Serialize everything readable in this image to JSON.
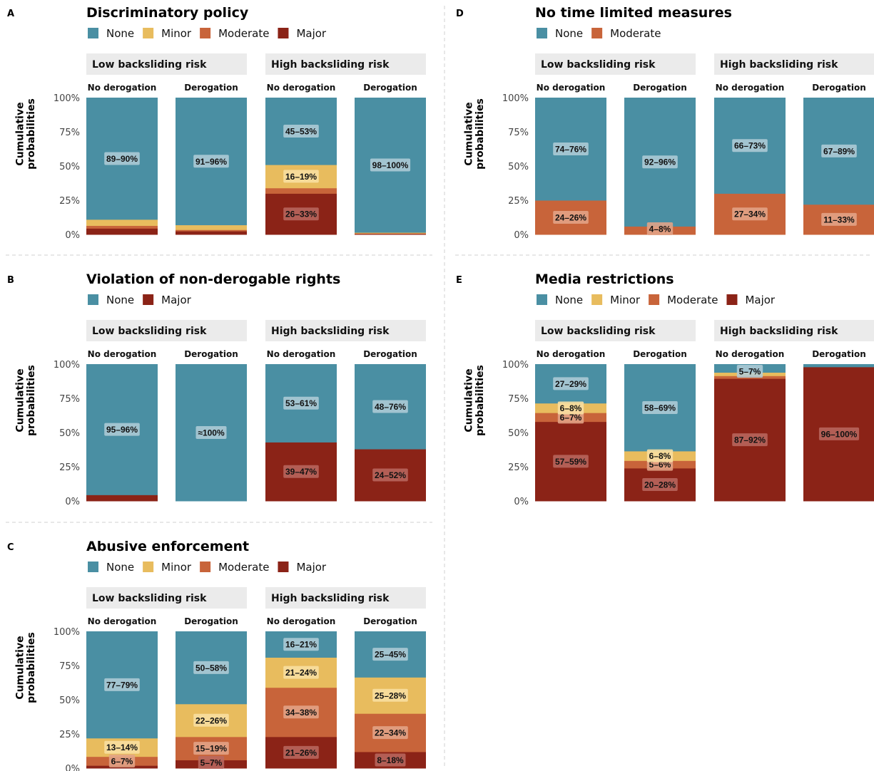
{
  "chart_data": [
    {
      "panel": "A",
      "title": "Discriminatory policy",
      "type": "stacked-bar",
      "categories_legend": [
        "None",
        "Minor",
        "Moderate",
        "Major"
      ],
      "colors": {
        "None": "#4a8fa3",
        "Minor": "#e8bc5e",
        "Moderate": "#c8643a",
        "Major": "#8b2317"
      },
      "ylabel": "Cumulative probabilities",
      "yticks": [
        "0%",
        "25%",
        "50%",
        "75%",
        "100%"
      ],
      "strips": [
        "Low backsliding risk",
        "High backsliding risk"
      ],
      "bars": [
        {
          "group": "Low backsliding risk",
          "label": "No derogation",
          "segments": [
            {
              "cat": "Major",
              "value": 0.045
            },
            {
              "cat": "Moderate",
              "value": 0.02
            },
            {
              "cat": "Minor",
              "value": 0.045
            },
            {
              "cat": "None",
              "value": 0.89
            }
          ],
          "annotations": [
            {
              "cat": "None",
              "text": "89–90%"
            }
          ]
        },
        {
          "group": "Low backsliding risk",
          "label": "Derogation",
          "segments": [
            {
              "cat": "Major",
              "value": 0.025
            },
            {
              "cat": "Moderate",
              "value": 0.01
            },
            {
              "cat": "Minor",
              "value": 0.035
            },
            {
              "cat": "None",
              "value": 0.93
            }
          ],
          "annotations": [
            {
              "cat": "None",
              "text": "91–96%"
            }
          ]
        },
        {
          "group": "High backsliding risk",
          "label": "No derogation",
          "segments": [
            {
              "cat": "Major",
              "value": 0.3
            },
            {
              "cat": "Moderate",
              "value": 0.04
            },
            {
              "cat": "Minor",
              "value": 0.17
            },
            {
              "cat": "None",
              "value": 0.49
            }
          ],
          "annotations": [
            {
              "cat": "Major",
              "text": "26–33%"
            },
            {
              "cat": "Minor",
              "text": "16–19%"
            },
            {
              "cat": "None",
              "text": "45–53%"
            }
          ]
        },
        {
          "group": "High backsliding risk",
          "label": "Derogation",
          "segments": [
            {
              "cat": "Major",
              "value": 0.005
            },
            {
              "cat": "Moderate",
              "value": 0.005
            },
            {
              "cat": "Minor",
              "value": 0.005
            },
            {
              "cat": "None",
              "value": 0.985
            }
          ],
          "annotations": [
            {
              "cat": "None",
              "text": "98–100%"
            }
          ]
        }
      ]
    },
    {
      "panel": "B",
      "title": "Violation of non-derogable rights",
      "type": "stacked-bar",
      "categories_legend": [
        "None",
        "Major"
      ],
      "colors": {
        "None": "#4a8fa3",
        "Major": "#8b2317"
      },
      "ylabel": "Cumulative probabilities",
      "yticks": [
        "0%",
        "25%",
        "50%",
        "75%",
        "100%"
      ],
      "strips": [
        "Low backsliding risk",
        "High backsliding risk"
      ],
      "bars": [
        {
          "group": "Low backsliding risk",
          "label": "No derogation",
          "segments": [
            {
              "cat": "Major",
              "value": 0.045
            },
            {
              "cat": "None",
              "value": 0.955
            }
          ],
          "annotations": [
            {
              "cat": "None",
              "text": "95–96%"
            }
          ]
        },
        {
          "group": "Low backsliding risk",
          "label": "Derogation",
          "segments": [
            {
              "cat": "Major",
              "value": 0.0
            },
            {
              "cat": "None",
              "value": 1.0
            }
          ],
          "annotations": [
            {
              "cat": "None",
              "text": "≈100%"
            }
          ]
        },
        {
          "group": "High backsliding risk",
          "label": "No derogation",
          "segments": [
            {
              "cat": "Major",
              "value": 0.43
            },
            {
              "cat": "None",
              "value": 0.57
            }
          ],
          "annotations": [
            {
              "cat": "Major",
              "text": "39–47%"
            },
            {
              "cat": "None",
              "text": "53–61%"
            }
          ]
        },
        {
          "group": "High backsliding risk",
          "label": "Derogation",
          "segments": [
            {
              "cat": "Major",
              "value": 0.38
            },
            {
              "cat": "None",
              "value": 0.62
            }
          ],
          "annotations": [
            {
              "cat": "Major",
              "text": "24–52%"
            },
            {
              "cat": "None",
              "text": "48–76%"
            }
          ]
        }
      ]
    },
    {
      "panel": "C",
      "title": "Abusive enforcement",
      "type": "stacked-bar",
      "categories_legend": [
        "None",
        "Minor",
        "Moderate",
        "Major"
      ],
      "colors": {
        "None": "#4a8fa3",
        "Minor": "#e8bc5e",
        "Moderate": "#c8643a",
        "Major": "#8b2317"
      },
      "ylabel": "Cumulative probabilities",
      "yticks": [
        "0%",
        "25%",
        "50%",
        "75%",
        "100%"
      ],
      "strips": [
        "Low backsliding risk",
        "High backsliding risk"
      ],
      "bars": [
        {
          "group": "Low backsliding risk",
          "label": "No derogation",
          "segments": [
            {
              "cat": "Major",
              "value": 0.02
            },
            {
              "cat": "Moderate",
              "value": 0.065
            },
            {
              "cat": "Minor",
              "value": 0.135
            },
            {
              "cat": "None",
              "value": 0.78
            }
          ],
          "annotations": [
            {
              "cat": "Moderate",
              "text": "6–7%"
            },
            {
              "cat": "Minor",
              "text": "13–14%"
            },
            {
              "cat": "None",
              "text": "77–79%"
            }
          ]
        },
        {
          "group": "Low backsliding risk",
          "label": "Derogation",
          "segments": [
            {
              "cat": "Major",
              "value": 0.06
            },
            {
              "cat": "Moderate",
              "value": 0.17
            },
            {
              "cat": "Minor",
              "value": 0.24
            },
            {
              "cat": "None",
              "value": 0.53
            }
          ],
          "annotations": [
            {
              "cat": "Major",
              "text": "5–7%"
            },
            {
              "cat": "Moderate",
              "text": "15–19%"
            },
            {
              "cat": "Minor",
              "text": "22–26%"
            },
            {
              "cat": "None",
              "text": "50–58%"
            }
          ]
        },
        {
          "group": "High backsliding risk",
          "label": "No derogation",
          "segments": [
            {
              "cat": "Major",
              "value": 0.23
            },
            {
              "cat": "Moderate",
              "value": 0.36
            },
            {
              "cat": "Minor",
              "value": 0.22
            },
            {
              "cat": "None",
              "value": 0.19
            }
          ],
          "annotations": [
            {
              "cat": "Major",
              "text": "21–26%"
            },
            {
              "cat": "Moderate",
              "text": "34–38%"
            },
            {
              "cat": "Minor",
              "text": "21–24%"
            },
            {
              "cat": "None",
              "text": "16–21%"
            }
          ]
        },
        {
          "group": "High backsliding risk",
          "label": "Derogation",
          "segments": [
            {
              "cat": "Major",
              "value": 0.12
            },
            {
              "cat": "Moderate",
              "value": 0.28
            },
            {
              "cat": "Minor",
              "value": 0.265
            },
            {
              "cat": "None",
              "value": 0.335
            }
          ],
          "annotations": [
            {
              "cat": "Major",
              "text": "8–18%"
            },
            {
              "cat": "Moderate",
              "text": "22–34%"
            },
            {
              "cat": "Minor",
              "text": "25–28%"
            },
            {
              "cat": "None",
              "text": "25–45%"
            }
          ]
        }
      ]
    },
    {
      "panel": "D",
      "title": "No time limited measures",
      "type": "stacked-bar",
      "categories_legend": [
        "None",
        "Moderate"
      ],
      "colors": {
        "None": "#4a8fa3",
        "Moderate": "#c8643a"
      },
      "ylabel": "Cumulative probabilities",
      "yticks": [
        "0%",
        "25%",
        "50%",
        "75%",
        "100%"
      ],
      "strips": [
        "Low backsliding risk",
        "High backsliding risk"
      ],
      "bars": [
        {
          "group": "Low backsliding risk",
          "label": "No derogation",
          "segments": [
            {
              "cat": "Moderate",
              "value": 0.25
            },
            {
              "cat": "None",
              "value": 0.75
            }
          ],
          "annotations": [
            {
              "cat": "Moderate",
              "text": "24–26%"
            },
            {
              "cat": "None",
              "text": "74–76%"
            }
          ]
        },
        {
          "group": "Low backsliding risk",
          "label": "Derogation",
          "segments": [
            {
              "cat": "Moderate",
              "value": 0.06
            },
            {
              "cat": "None",
              "value": 0.94
            }
          ],
          "annotations": [
            {
              "cat": "Moderate",
              "text": "4–8%"
            },
            {
              "cat": "None",
              "text": "92–96%"
            }
          ]
        },
        {
          "group": "High backsliding risk",
          "label": "No derogation",
          "segments": [
            {
              "cat": "Moderate",
              "value": 0.3
            },
            {
              "cat": "None",
              "value": 0.7
            }
          ],
          "annotations": [
            {
              "cat": "Moderate",
              "text": "27–34%"
            },
            {
              "cat": "None",
              "text": "66–73%"
            }
          ]
        },
        {
          "group": "High backsliding risk",
          "label": "Derogation",
          "segments": [
            {
              "cat": "Moderate",
              "value": 0.22
            },
            {
              "cat": "None",
              "value": 0.78
            }
          ],
          "annotations": [
            {
              "cat": "Moderate",
              "text": "11–33%"
            },
            {
              "cat": "None",
              "text": "67–89%"
            }
          ]
        }
      ]
    },
    {
      "panel": "E",
      "title": "Media restrictions",
      "type": "stacked-bar",
      "categories_legend": [
        "None",
        "Minor",
        "Moderate",
        "Major"
      ],
      "colors": {
        "None": "#4a8fa3",
        "Minor": "#e8bc5e",
        "Moderate": "#c8643a",
        "Major": "#8b2317"
      },
      "ylabel": "Cumulative probabilities",
      "yticks": [
        "0%",
        "25%",
        "50%",
        "75%",
        "100%"
      ],
      "strips": [
        "Low backsliding risk",
        "High backsliding risk"
      ],
      "bars": [
        {
          "group": "Low backsliding risk",
          "label": "No derogation",
          "segments": [
            {
              "cat": "Major",
              "value": 0.58
            },
            {
              "cat": "Moderate",
              "value": 0.065
            },
            {
              "cat": "Minor",
              "value": 0.07
            },
            {
              "cat": "None",
              "value": 0.285
            }
          ],
          "annotations": [
            {
              "cat": "Major",
              "text": "57–59%"
            },
            {
              "cat": "Moderate",
              "text": "6–7%"
            },
            {
              "cat": "Minor",
              "text": "6–8%"
            },
            {
              "cat": "None",
              "text": "27–29%"
            }
          ]
        },
        {
          "group": "Low backsliding risk",
          "label": "Derogation",
          "segments": [
            {
              "cat": "Major",
              "value": 0.24
            },
            {
              "cat": "Moderate",
              "value": 0.055
            },
            {
              "cat": "Minor",
              "value": 0.07
            },
            {
              "cat": "None",
              "value": 0.635
            }
          ],
          "annotations": [
            {
              "cat": "Major",
              "text": "20–28%"
            },
            {
              "cat": "Moderate",
              "text": "5–6%"
            },
            {
              "cat": "Minor",
              "text": "6–8%"
            },
            {
              "cat": "None",
              "text": "58–69%"
            }
          ]
        },
        {
          "group": "High backsliding risk",
          "label": "No derogation",
          "segments": [
            {
              "cat": "Major",
              "value": 0.895
            },
            {
              "cat": "Moderate",
              "value": 0.02
            },
            {
              "cat": "Minor",
              "value": 0.025
            },
            {
              "cat": "None",
              "value": 0.06
            }
          ],
          "annotations": [
            {
              "cat": "Major",
              "text": "87–92%"
            },
            {
              "cat": "None",
              "text": "5–7%"
            }
          ]
        },
        {
          "group": "High backsliding risk",
          "label": "Derogation",
          "segments": [
            {
              "cat": "Major",
              "value": 0.98
            },
            {
              "cat": "Moderate",
              "value": 0.0
            },
            {
              "cat": "Minor",
              "value": 0.0
            },
            {
              "cat": "None",
              "value": 0.02
            }
          ],
          "annotations": [
            {
              "cat": "Major",
              "text": "96–100%"
            }
          ]
        }
      ]
    }
  ]
}
